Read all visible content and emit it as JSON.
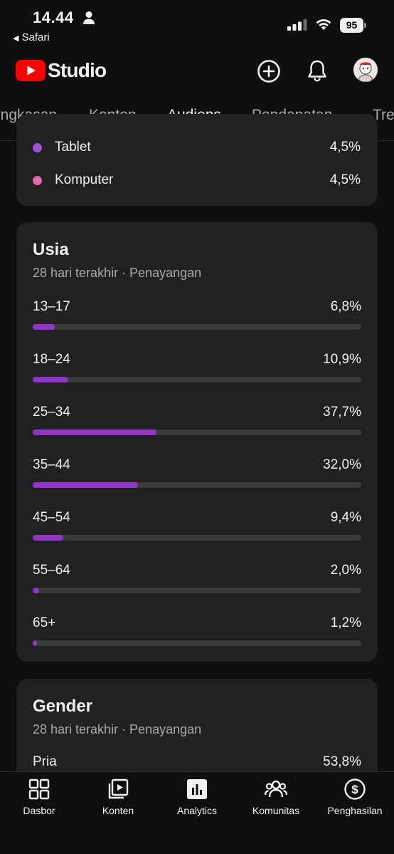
{
  "status_bar": {
    "time": "14.44",
    "back_app": "Safari",
    "battery": "95"
  },
  "app": {
    "logo_text": "Studio",
    "logo_color": "#ff0000"
  },
  "tabs": [
    {
      "label": "ingkasan",
      "active": false
    },
    {
      "label": "Konten",
      "active": false
    },
    {
      "label": "Audiens",
      "active": true
    },
    {
      "label": "Pendapatan",
      "active": false
    },
    {
      "label": "Tre",
      "active": false
    }
  ],
  "device_card": {
    "rows": [
      {
        "label": "Tablet",
        "value": "4,5%",
        "color": "#9b55d6"
      },
      {
        "label": "Komputer",
        "value": "4,5%",
        "color": "#e06aa8"
      }
    ]
  },
  "age_card": {
    "title": "Usia",
    "subtitle": "28 hari terakhir · Penayangan",
    "bar_color": "#9334c8",
    "rows": [
      {
        "label": "13–17",
        "value": "6,8%",
        "pct": 6.8
      },
      {
        "label": "18–24",
        "value": "10,9%",
        "pct": 10.9
      },
      {
        "label": "25–34",
        "value": "37,7%",
        "pct": 37.7
      },
      {
        "label": "35–44",
        "value": "32,0%",
        "pct": 32.0
      },
      {
        "label": "45–54",
        "value": "9,4%",
        "pct": 9.4
      },
      {
        "label": "55–64",
        "value": "2,0%",
        "pct": 2.0
      },
      {
        "label": "65+",
        "value": "1,2%",
        "pct": 1.2
      }
    ]
  },
  "gender_card": {
    "title": "Gender",
    "subtitle": "28 hari terakhir · Penayangan",
    "rows": [
      {
        "label": "Pria",
        "value": "53,8%"
      }
    ]
  },
  "bottom_nav": [
    {
      "label": "Dasbor",
      "icon": "dashboard-icon"
    },
    {
      "label": "Konten",
      "icon": "content-icon"
    },
    {
      "label": "Analytics",
      "icon": "analytics-icon",
      "active": true
    },
    {
      "label": "Komunitas",
      "icon": "community-icon"
    },
    {
      "label": "Penghasilan",
      "icon": "earn-icon"
    }
  ]
}
